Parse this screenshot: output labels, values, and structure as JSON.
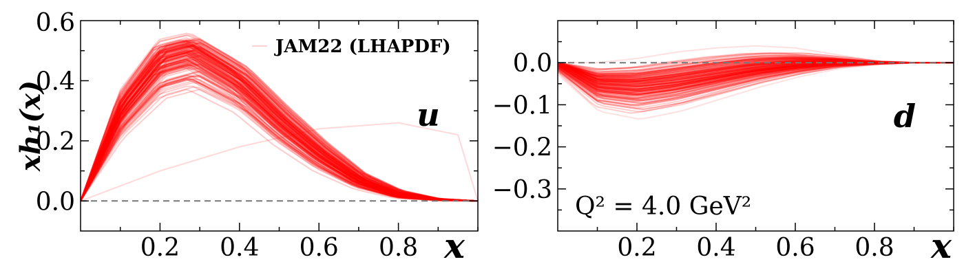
{
  "chart_data": [
    {
      "type": "line",
      "panel_label": "u",
      "xlabel": "x",
      "ylabel": "xh₁(x)",
      "xlim": [
        0.0,
        1.0
      ],
      "ylim": [
        -0.1,
        0.6
      ],
      "xticks": [
        0.2,
        0.4,
        0.6,
        0.8
      ],
      "yticks": [
        0.0,
        0.2,
        0.4,
        0.6
      ],
      "legend": {
        "label": "JAM22 (LHAPDF)",
        "position": "top-right"
      },
      "zero_line": true,
      "series_color": "#ff0000",
      "ensemble": {
        "n_replicas": 150,
        "x": [
          0.0,
          0.1,
          0.2,
          0.28,
          0.4,
          0.5,
          0.6,
          0.7,
          0.8,
          0.9,
          1.0
        ],
        "central": [
          0.0,
          0.3,
          0.47,
          0.5,
          0.4,
          0.27,
          0.16,
          0.07,
          0.02,
          0.005,
          0.0
        ],
        "band_low": [
          0.0,
          0.18,
          0.3,
          0.33,
          0.26,
          0.16,
          0.08,
          0.03,
          0.005,
          0.0,
          0.0
        ],
        "band_high": [
          0.0,
          0.4,
          0.57,
          0.59,
          0.5,
          0.37,
          0.24,
          0.12,
          0.05,
          0.01,
          0.0
        ],
        "outlier_x": [
          0.0,
          0.2,
          0.4,
          0.6,
          0.8,
          0.95,
          1.0
        ],
        "outlier_y": [
          0.0,
          0.1,
          0.18,
          0.24,
          0.26,
          0.22,
          0.0
        ]
      }
    },
    {
      "type": "line",
      "panel_label": "d",
      "xlabel": "x",
      "ylabel": "",
      "xlim": [
        0.0,
        1.0
      ],
      "ylim": [
        -0.4,
        0.1
      ],
      "xticks": [
        0.2,
        0.4,
        0.6,
        0.8
      ],
      "yticks": [
        -0.3,
        -0.2,
        -0.1,
        0.0
      ],
      "annotation": "Q² = 4.0 GeV²",
      "zero_line": true,
      "series_color": "#ff0000",
      "ensemble": {
        "n_replicas": 150,
        "x": [
          0.0,
          0.1,
          0.2,
          0.3,
          0.4,
          0.5,
          0.6,
          0.7,
          0.8,
          0.9,
          1.0
        ],
        "central": [
          0.0,
          -0.05,
          -0.055,
          -0.045,
          -0.03,
          -0.015,
          -0.005,
          0.0,
          0.0,
          0.0,
          0.0
        ],
        "band_low": [
          -0.03,
          -0.12,
          -0.14,
          -0.12,
          -0.09,
          -0.06,
          -0.035,
          -0.015,
          -0.005,
          0.0,
          0.0
        ],
        "band_high": [
          0.0,
          0.0,
          0.01,
          0.025,
          0.035,
          0.04,
          0.035,
          0.02,
          0.005,
          0.0,
          0.0
        ]
      }
    }
  ]
}
